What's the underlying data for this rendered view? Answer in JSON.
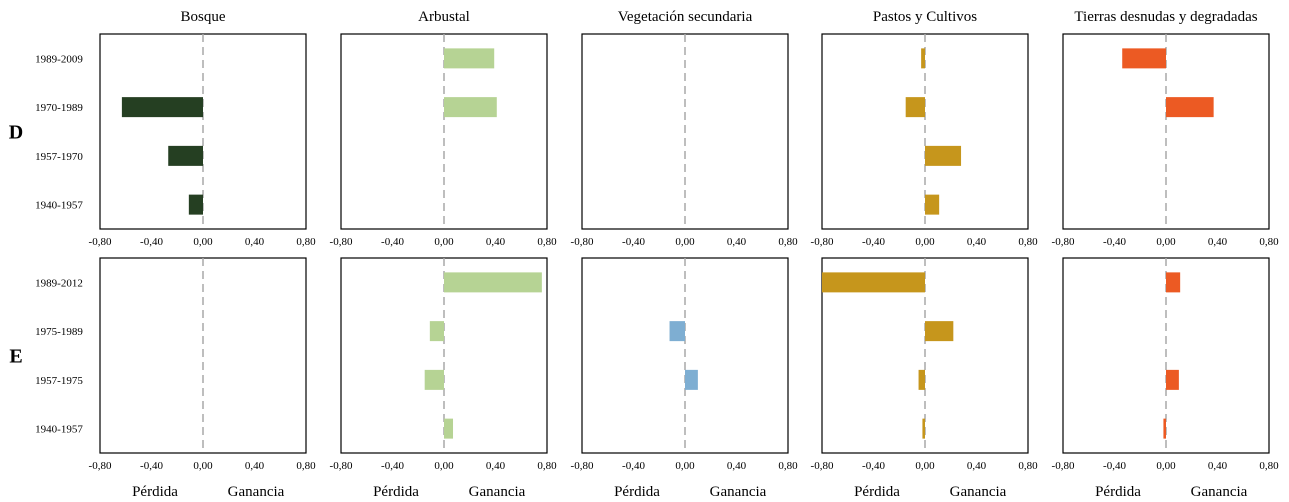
{
  "chart_data": {
    "type": "bar",
    "orientation": "horizontal",
    "xlim": [
      -0.8,
      0.8
    ],
    "x_ticks": [
      "-0,80",
      "-0,40",
      "0,00",
      "0,40",
      "0,80"
    ],
    "footer_labels": {
      "left": "Pérdida",
      "right": "Ganancia"
    },
    "columns": [
      {
        "title": "Bosque",
        "color": "#253f22"
      },
      {
        "title": "Arbustal",
        "color": "#b6d394"
      },
      {
        "title": "Vegetación secundaria",
        "color": "#7eaed2"
      },
      {
        "title": "Pastos y Cultivos",
        "color": "#c6961c"
      },
      {
        "title": "Tierras desnudas y degradadas",
        "color": "#ec5a23"
      }
    ],
    "rows": [
      {
        "label": "D",
        "periods": [
          "1989-2009",
          "1970-1989",
          "1957-1970",
          "1940-1957"
        ],
        "values": [
          [
            0,
            -0.63,
            -0.27,
            -0.11
          ],
          [
            0.39,
            0.41,
            0,
            0
          ],
          [
            0,
            0,
            0,
            0
          ],
          [
            -0.03,
            -0.15,
            0.28,
            0.11
          ],
          [
            -0.34,
            0.37,
            0,
            0
          ]
        ]
      },
      {
        "label": "E",
        "periods": [
          "1989-2012",
          "1975-1989",
          "1957-1975",
          "1940-1957"
        ],
        "values": [
          [
            0,
            0,
            0,
            0
          ],
          [
            0.76,
            -0.11,
            -0.15,
            0.07
          ],
          [
            0,
            -0.12,
            0.1,
            0
          ],
          [
            -0.8,
            0.22,
            -0.05,
            -0.02
          ],
          [
            0.11,
            0,
            0.1,
            -0.02
          ]
        ]
      }
    ]
  }
}
